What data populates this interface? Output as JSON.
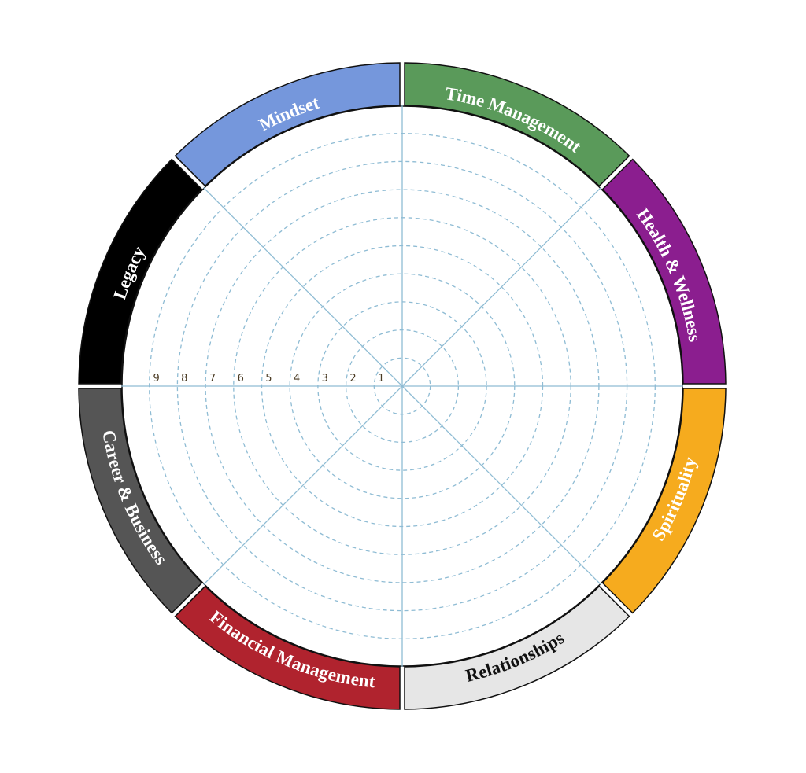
{
  "wheel": {
    "segments": [
      {
        "label": "Time Management",
        "color": "#5a9a5a",
        "text_color": "#ffffff"
      },
      {
        "label": "Health & Wellness",
        "color": "#8b1e8f",
        "text_color": "#ffffff"
      },
      {
        "label": "Spirituality",
        "color": "#f6ab1e",
        "text_color": "#ffffff"
      },
      {
        "label": "Relationships",
        "color": "#e6e6e6",
        "text_color": "#111111"
      },
      {
        "label": "Financial Management",
        "color": "#b0232e",
        "text_color": "#ffffff"
      },
      {
        "label": "Career & Business",
        "color": "#555555",
        "text_color": "#ffffff"
      },
      {
        "label": "Legacy",
        "color": "#000000",
        "text_color": "#ffffff"
      },
      {
        "label": "Mindset",
        "color": "#7597dc",
        "text_color": "#ffffff"
      }
    ],
    "scale": [
      "1",
      "2",
      "3",
      "4",
      "5",
      "6",
      "7",
      "8",
      "9"
    ],
    "ring_count": 10,
    "line_color": "#8fbcd4",
    "outline_color": "#111111"
  }
}
